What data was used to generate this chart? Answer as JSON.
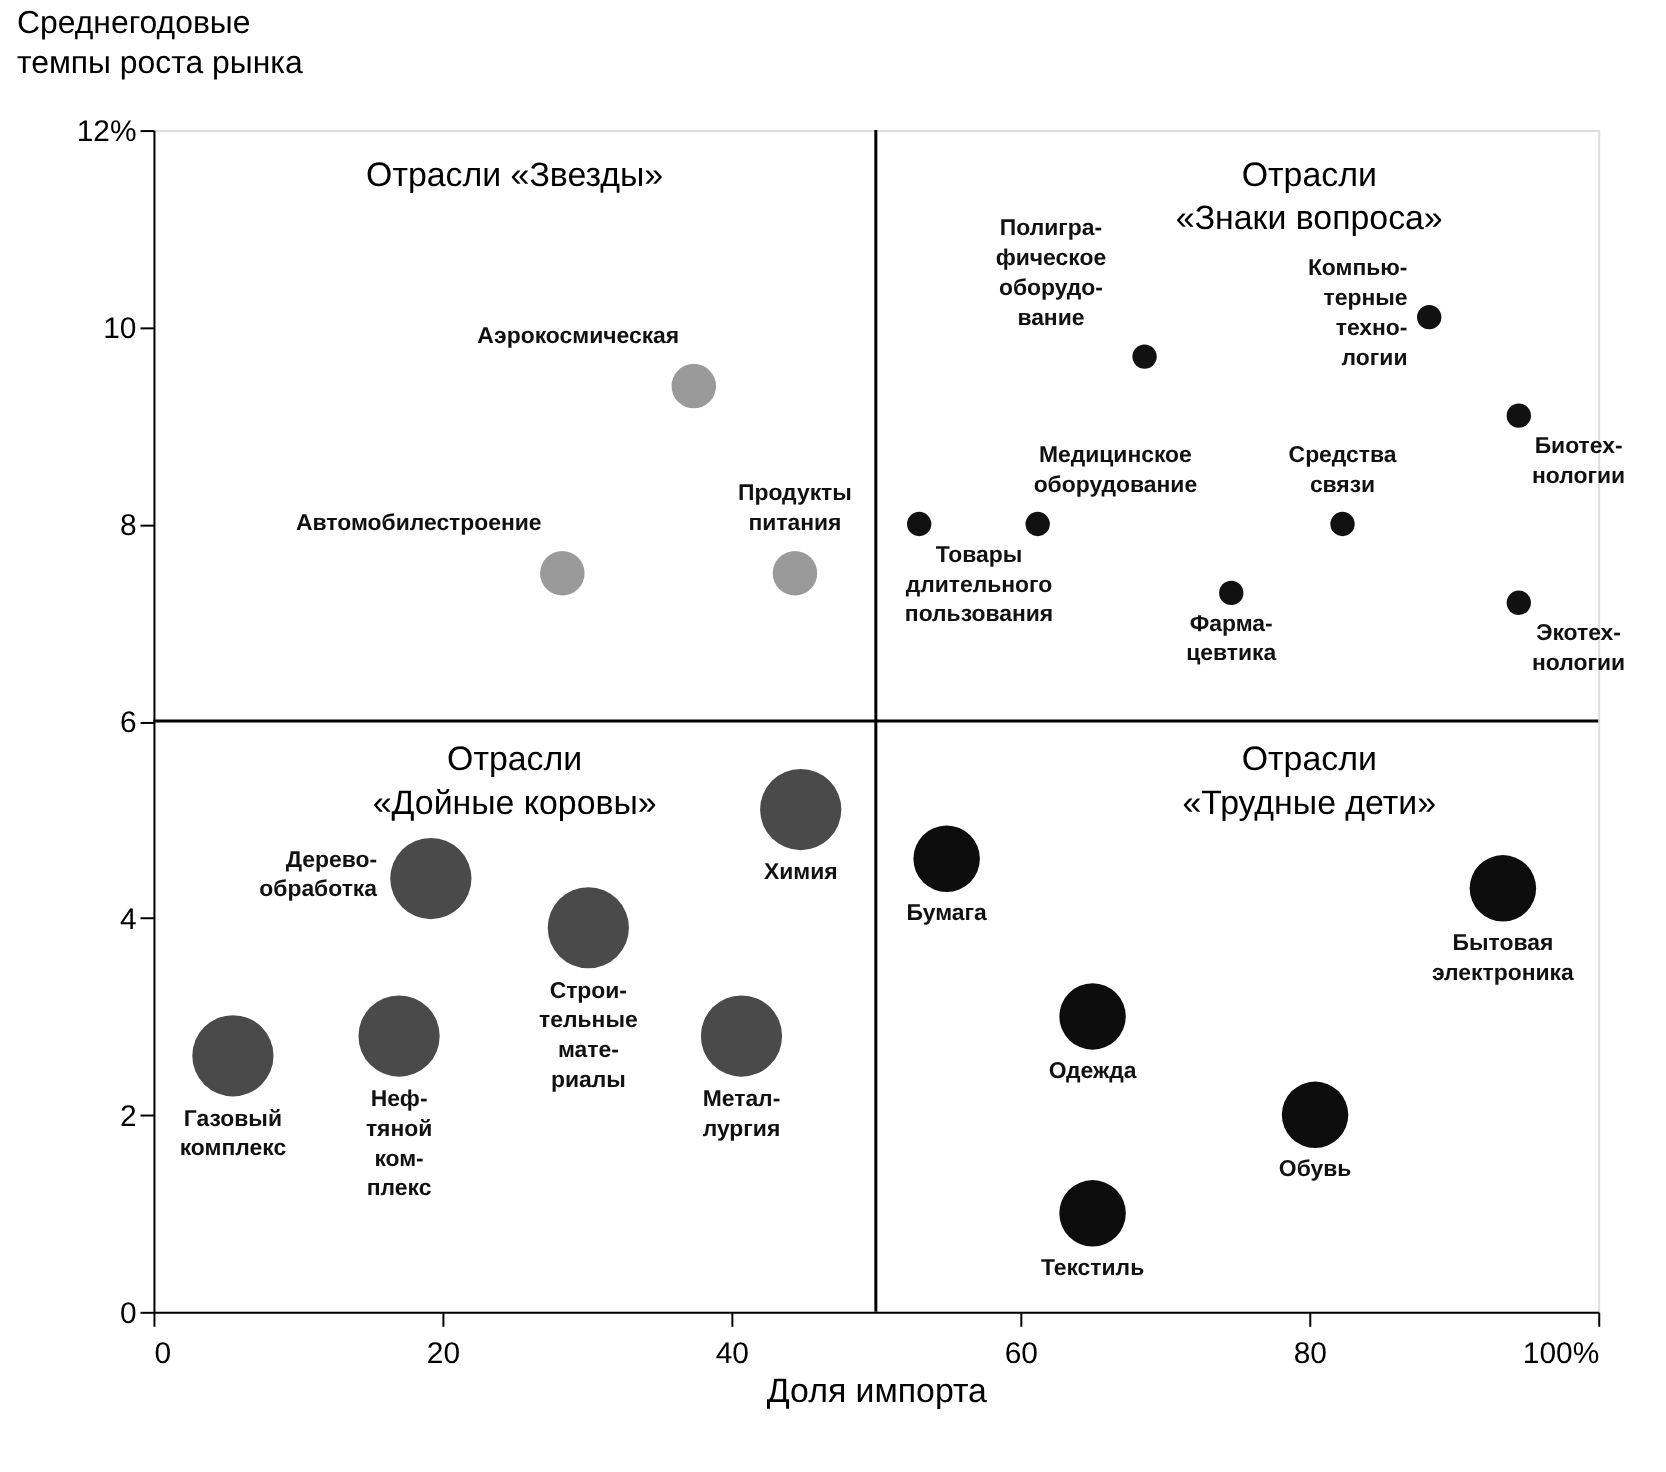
{
  "chart_data": {
    "type": "bubble",
    "xlabel": "Доля импорта",
    "ylabel": "Среднегодовые\nтемпы роста рынка",
    "xlim": [
      0,
      100
    ],
    "ylim": [
      0,
      12
    ],
    "xticks": [
      0,
      20,
      40,
      60,
      80,
      {
        "value": 100,
        "label": "100%"
      }
    ],
    "yticks": [
      0,
      2,
      4,
      6,
      8,
      10,
      {
        "value": 12,
        "label": "12%"
      }
    ],
    "grid": false,
    "legend": false,
    "series": [
      {
        "color": "#9a9a9a",
        "x": [
          37.4,
          28.3,
          44.4
        ],
        "values": [
          9.4,
          7.5,
          7.5
        ],
        "sizes": [
          0.3,
          0.3,
          0.3
        ]
      },
      {
        "color": "#111111",
        "x": [
          53,
          68.6,
          61.2,
          88.3,
          94.5,
          82.3,
          74.6,
          94.5
        ],
        "values": [
          8.0,
          9.7,
          8.0,
          10.1,
          9.1,
          8.0,
          7.3,
          7.2
        ],
        "sizes": [
          0.09,
          0.09,
          0.09,
          0.09,
          0.09,
          0.09,
          0.09,
          0.09
        ]
      },
      {
        "color": "#4a4a4a",
        "x": [
          5.5,
          17,
          19.2,
          30.1,
          40.7,
          44.8
        ],
        "values": [
          2.6,
          2.8,
          4.4,
          3.9,
          2.8,
          5.1
        ],
        "sizes": [
          1,
          1,
          1,
          1,
          1,
          1
        ]
      },
      {
        "color": "#0d0d0d",
        "x": [
          54.9,
          65,
          65,
          80.4,
          93.4
        ],
        "values": [
          4.6,
          3.0,
          1.0,
          2.0,
          4.3
        ],
        "sizes": [
          0.67,
          0.67,
          0.67,
          0.67,
          0.67
        ]
      }
    ],
    "ref_lines": [
      {
        "axis": "x",
        "value": 50
      },
      {
        "axis": "y",
        "value": 6
      }
    ],
    "annotations": [
      "Отрасли «Звезды»",
      "Отрасли\n«Знаки вопроса»",
      "Отрасли\n«Дойные коровы»",
      "Отрасли\n«Трудные дети»",
      {
        "text": "Аэрокосмическая",
        "x": 37.4,
        "y": 9.4
      },
      {
        "text": "Автомобилестроение",
        "x": 28.3,
        "y": 7.5
      },
      {
        "text": "Продукты\nпитания",
        "x": 44.4,
        "y": 7.5
      },
      {
        "text": "Товары\nдлительного\nпользования",
        "x": 53,
        "y": 8.0
      },
      {
        "text": "Полигра-\nфическое\nоборудо-\nвание",
        "x": 68.6,
        "y": 9.7
      },
      {
        "text": "Медицинское\nоборудование",
        "x": 61.2,
        "y": 8.0
      },
      {
        "text": "Компью-\nтерные\nтехно-\nлогии",
        "x": 88.3,
        "y": 10.1
      },
      {
        "text": "Биотех-\nнологии",
        "x": 94.5,
        "y": 9.1
      },
      {
        "text": "Средства\nсвязи",
        "x": 82.3,
        "y": 8.0
      },
      {
        "text": "Фарма-\nцевтика",
        "x": 74.6,
        "y": 7.3
      },
      {
        "text": "Экотех-\nнологии",
        "x": 94.5,
        "y": 7.2
      },
      {
        "text": "Газовый\nкомплекс",
        "x": 5.5,
        "y": 2.6
      },
      {
        "text": "Неф-\nтяной\nком-\nплекс",
        "x": 17,
        "y": 2.8
      },
      {
        "text": "Дерево-\nобработка",
        "x": 19.2,
        "y": 4.4
      },
      {
        "text": "Строи-\nтельные\nмате-\nриалы",
        "x": 30.1,
        "y": 3.9
      },
      {
        "text": "Метал-\nлургия",
        "x": 40.7,
        "y": 2.8
      },
      {
        "text": "Химия",
        "x": 44.8,
        "y": 5.1
      },
      {
        "text": "Бумага",
        "x": 54.9,
        "y": 4.6
      },
      {
        "text": "Одежда",
        "x": 65,
        "y": 3.0
      },
      {
        "text": "Текстиль",
        "x": 65,
        "y": 1.0
      },
      {
        "text": "Обувь",
        "x": 80.4,
        "y": 2.0
      },
      {
        "text": "Бытовая\nэлектроника",
        "x": 93.4,
        "y": 4.3
      }
    ]
  }
}
